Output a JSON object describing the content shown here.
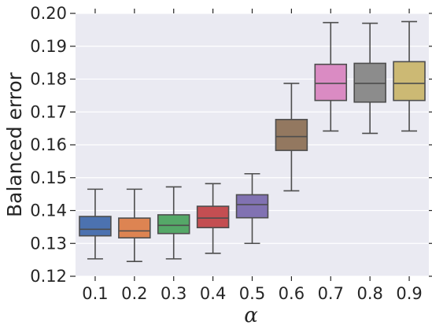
{
  "chart_data": {
    "type": "box",
    "xlabel": "α",
    "ylabel": "Balanced error",
    "ylim": [
      0.12,
      0.2
    ],
    "yticks": [
      "0.12",
      "0.13",
      "0.14",
      "0.15",
      "0.16",
      "0.17",
      "0.18",
      "0.19",
      "0.20"
    ],
    "grid": true,
    "categories": [
      "0.1",
      "0.2",
      "0.3",
      "0.4",
      "0.5",
      "0.6",
      "0.7",
      "0.8",
      "0.9"
    ],
    "boxes": [
      {
        "category": "0.1",
        "whisker_low": 0.1253,
        "q1": 0.1323,
        "median": 0.1343,
        "q3": 0.1382,
        "whisker_high": 0.1465,
        "color": "#4c72b0"
      },
      {
        "category": "0.2",
        "whisker_low": 0.1245,
        "q1": 0.1317,
        "median": 0.1338,
        "q3": 0.1377,
        "whisker_high": 0.1465,
        "color": "#dd8452"
      },
      {
        "category": "0.3",
        "whisker_low": 0.1253,
        "q1": 0.133,
        "median": 0.1355,
        "q3": 0.1387,
        "whisker_high": 0.1472,
        "color": "#55a868"
      },
      {
        "category": "0.4",
        "whisker_low": 0.127,
        "q1": 0.1348,
        "median": 0.1377,
        "q3": 0.1413,
        "whisker_high": 0.1482,
        "color": "#c44e52"
      },
      {
        "category": "0.5",
        "whisker_low": 0.13,
        "q1": 0.1378,
        "median": 0.1418,
        "q3": 0.1448,
        "whisker_high": 0.1512,
        "color": "#8172b2"
      },
      {
        "category": "0.6",
        "whisker_low": 0.146,
        "q1": 0.1583,
        "median": 0.1625,
        "q3": 0.1677,
        "whisker_high": 0.1787,
        "color": "#937860"
      },
      {
        "category": "0.7",
        "whisker_low": 0.1642,
        "q1": 0.1735,
        "median": 0.1787,
        "q3": 0.1845,
        "whisker_high": 0.1972,
        "color": "#da8bc3"
      },
      {
        "category": "0.8",
        "whisker_low": 0.1635,
        "q1": 0.173,
        "median": 0.1787,
        "q3": 0.1848,
        "whisker_high": 0.197,
        "color": "#8c8c8c"
      },
      {
        "category": "0.9",
        "whisker_low": 0.1642,
        "q1": 0.1735,
        "median": 0.1787,
        "q3": 0.1853,
        "whisker_high": 0.1975,
        "color": "#ccb974"
      }
    ]
  }
}
